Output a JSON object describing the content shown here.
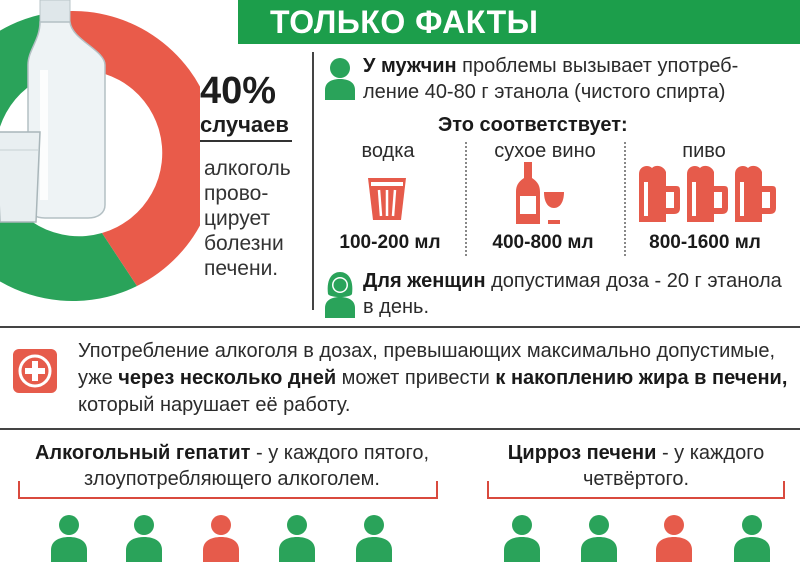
{
  "header": {
    "title": "ТОЛЬКО ФАКТЫ"
  },
  "stat_percent": {
    "value": "40%",
    "unit": "случаев",
    "description": "алкоголь прово-цирует болезни печени.",
    "fraction": 0.4
  },
  "men": {
    "bold": "У мужчин",
    "text": " проблемы вызывает употреб-ление 40-80 г этанола (чистого спирта)"
  },
  "equivalent_title": "Это соответствует:",
  "drinks": [
    {
      "name": "водка",
      "amount": "100-200 мл",
      "icon": "vodka-glass-icon"
    },
    {
      "name": "сухое вино",
      "amount": "400-800 мл",
      "icon": "wine-icon"
    },
    {
      "name": "пиво",
      "amount": "800-1600 мл",
      "icon": "beer-mugs-icon"
    }
  ],
  "women": {
    "bold": "Для женщин",
    "text": " допустимая доза - 20 г этанола в день."
  },
  "info": {
    "part1": "Употребление алкоголя в дозах, превышающих максимально допустимые, уже ",
    "bold1": "через несколько дней",
    "part2": " может привести ",
    "bold2": "к накоплению жира в печени,",
    "part3": " который нарушает её работу."
  },
  "hepatitis": {
    "bold": "Алкогольный гепатит",
    "text": " - у каждого пятого, злоупотребляющего алкоголем.",
    "highlight_index": 2,
    "count": 5
  },
  "cirrhosis": {
    "bold": "Цирроз печени",
    "text": " - у каждого четвёртого.",
    "highlight_index": 2,
    "count": 4
  },
  "colors": {
    "green": "#2aa35a",
    "red": "#e65b4b",
    "dark_green": "#1c9e4b"
  }
}
